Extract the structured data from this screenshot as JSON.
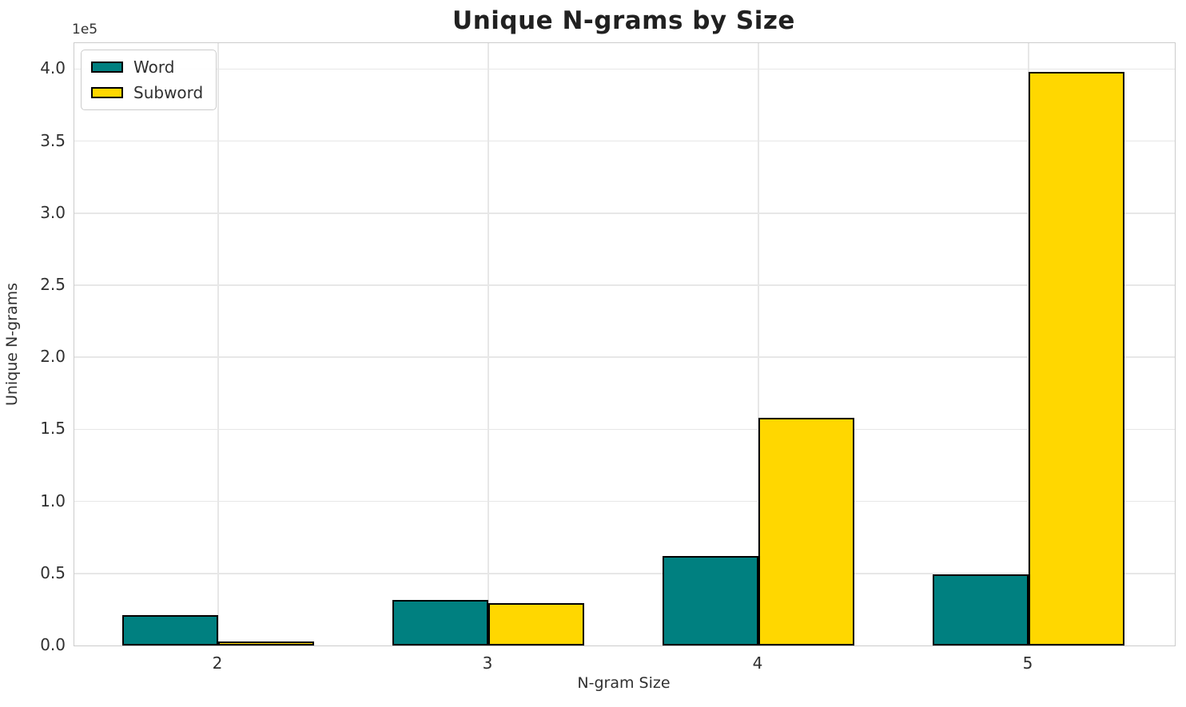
{
  "chart_data": {
    "type": "bar",
    "title": "Unique N-grams by Size",
    "xlabel": "N-gram Size",
    "ylabel": "Unique N-grams",
    "offset_text": "1e5",
    "categories": [
      2,
      3,
      4,
      5
    ],
    "series": [
      {
        "name": "Word",
        "color": "#008080",
        "values": [
          21000,
          31500,
          62000,
          49500
        ]
      },
      {
        "name": "Subword",
        "color": "#FFD700",
        "values": [
          3000,
          29500,
          158000,
          398000
        ]
      }
    ],
    "bar_edge_color": "#000000",
    "ylim": [
      0,
      418000
    ],
    "yticks": [
      {
        "value": 0,
        "label": "0.0"
      },
      {
        "value": 50000,
        "label": "0.5"
      },
      {
        "value": 100000,
        "label": "1.0"
      },
      {
        "value": 150000,
        "label": "1.5"
      },
      {
        "value": 200000,
        "label": "2.0"
      },
      {
        "value": 250000,
        "label": "2.5"
      },
      {
        "value": 300000,
        "label": "3.0"
      },
      {
        "value": 350000,
        "label": "3.5"
      },
      {
        "value": 400000,
        "label": "4.0"
      }
    ],
    "grid": true,
    "legend_position": "upper left"
  }
}
